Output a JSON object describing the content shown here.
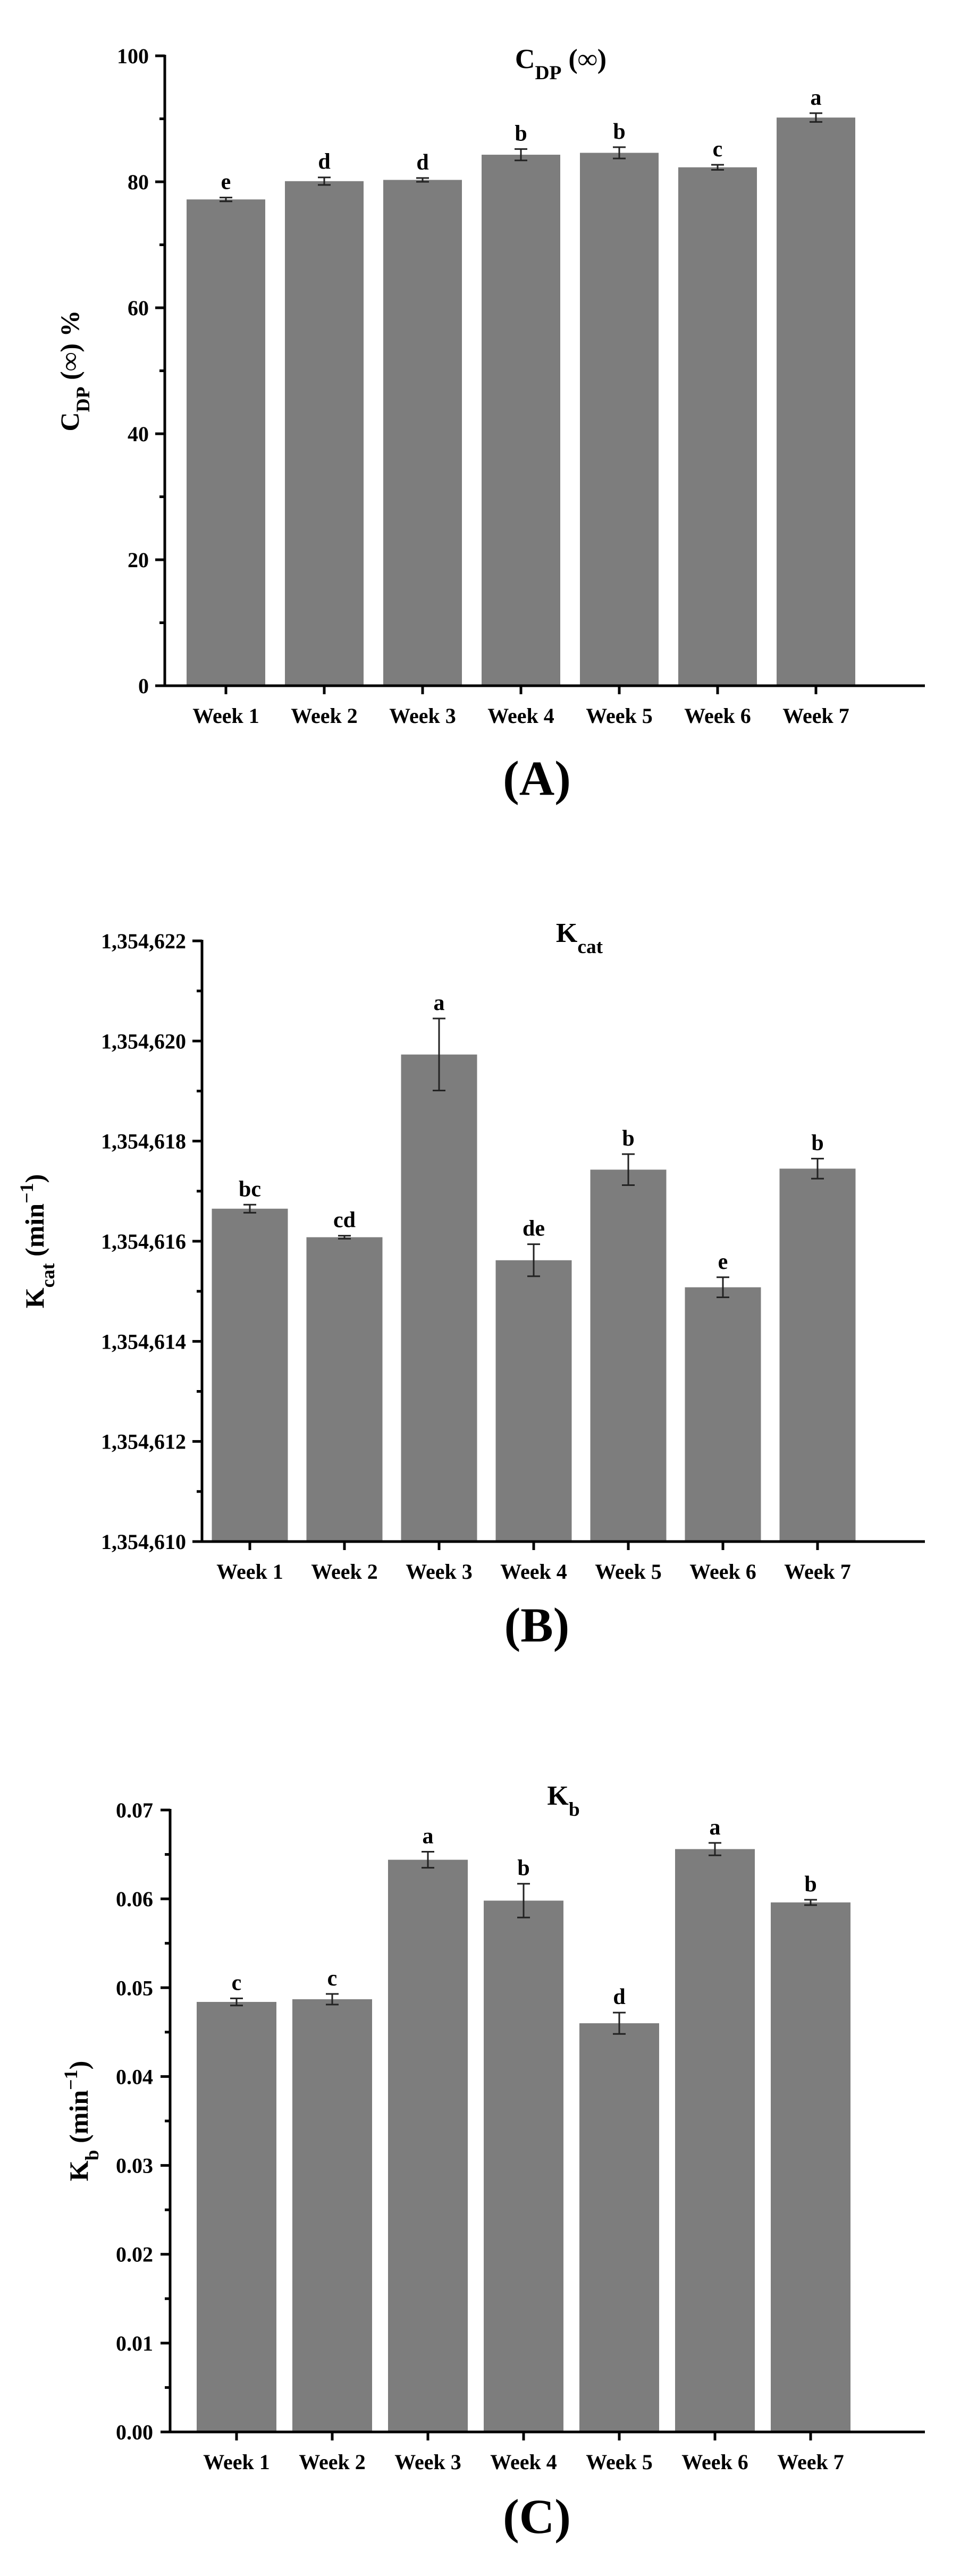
{
  "chart_data": [
    {
      "type": "bar",
      "panel_label": "(A)",
      "title": {
        "base": "C",
        "sub": "DP",
        "rest": " (∞)"
      },
      "ylabel": {
        "base": "C",
        "sub": "DP",
        "rest": " (∞) %"
      },
      "xlabel": "",
      "categories": [
        "Week 1",
        "Week 2",
        "Week 3",
        "Week 4",
        "Week 5",
        "Week 6",
        "Week 7"
      ],
      "values": [
        77.2,
        80.1,
        80.3,
        84.3,
        84.6,
        82.3,
        90.2
      ],
      "errors": [
        0.3,
        0.6,
        0.3,
        0.9,
        0.9,
        0.4,
        0.7
      ],
      "significance": [
        "e",
        "d",
        "d",
        "b",
        "b",
        "c",
        "a"
      ],
      "ylim": [
        0,
        100
      ],
      "yticks": [
        0,
        20,
        40,
        60,
        80,
        100
      ],
      "ytick_labels": [
        "0",
        "20",
        "40",
        "60",
        "80",
        "100"
      ],
      "bar_color": "#7d7d7d"
    },
    {
      "type": "bar",
      "panel_label": "(B)",
      "title": {
        "base": "K",
        "sub": "cat",
        "rest": ""
      },
      "ylabel": {
        "base": "K",
        "sub": "cat",
        "rest": " (min",
        "sup": "−1",
        "tail": ")"
      },
      "xlabel": "",
      "categories": [
        "Week 1",
        "Week 2",
        "Week 3",
        "Week 4",
        "Week 5",
        "Week 6",
        "Week 7"
      ],
      "values": [
        1354616.65,
        1354616.08,
        1354619.73,
        1354615.62,
        1354617.43,
        1354615.08,
        1354617.45
      ],
      "errors": [
        0.08,
        0.03,
        0.72,
        0.32,
        0.31,
        0.2,
        0.2
      ],
      "significance": [
        "bc",
        "cd",
        "a",
        "de",
        "b",
        "e",
        "b"
      ],
      "ylim": [
        1354610,
        1354622
      ],
      "yticks": [
        1354610,
        1354612,
        1354614,
        1354616,
        1354618,
        1354620,
        1354622
      ],
      "ytick_labels": [
        "1,354,610",
        "1,354,612",
        "1,354,614",
        "1,354,616",
        "1,354,618",
        "1,354,620",
        "1,354,622"
      ],
      "bar_color": "#7d7d7d"
    },
    {
      "type": "bar",
      "panel_label": "(C)",
      "title": {
        "base": "K",
        "sub": "b",
        "rest": ""
      },
      "ylabel": {
        "base": "K",
        "sub": "b",
        "rest": " (min",
        "sup": "−1",
        "tail": ")"
      },
      "xlabel": "",
      "categories": [
        "Week 1",
        "Week 2",
        "Week 3",
        "Week 4",
        "Week 5",
        "Week 6",
        "Week 7"
      ],
      "values": [
        0.0484,
        0.0487,
        0.0644,
        0.0598,
        0.046,
        0.0656,
        0.0596
      ],
      "errors": [
        0.0004,
        0.0006,
        0.0009,
        0.0019,
        0.0012,
        0.0007,
        0.0003
      ],
      "significance": [
        "c",
        "c",
        "a",
        "b",
        "d",
        "a",
        "b"
      ],
      "ylim": [
        0,
        0.07
      ],
      "yticks": [
        0,
        0.01,
        0.02,
        0.03,
        0.04,
        0.05,
        0.06,
        0.07
      ],
      "ytick_labels": [
        "0.00",
        "0.01",
        "0.02",
        "0.03",
        "0.04",
        "0.05",
        "0.06",
        "0.07"
      ],
      "bar_color": "#7d7d7d"
    }
  ]
}
